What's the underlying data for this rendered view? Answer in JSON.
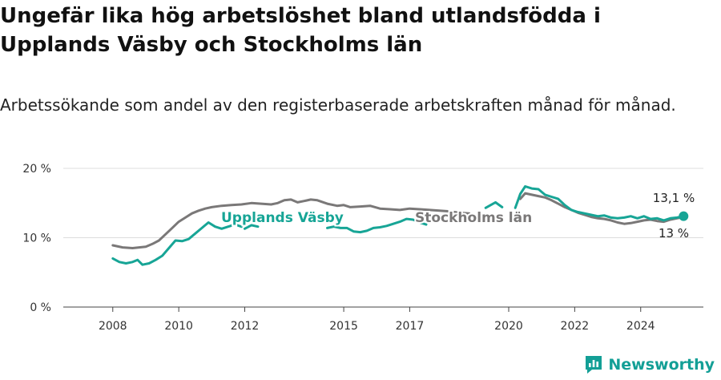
{
  "title": "Ungefär lika hög arbetslöshet bland utlandsfödda i Upplands Väsby och Stockholms län",
  "subtitle": "Arbetssökande som andel av den registerbaserade arbetskraften månad för månad.",
  "brand": "Newsworthy",
  "colors": {
    "vasby": "#17a596",
    "lan": "#7a7878",
    "grid": "#dddddd",
    "axis": "#444444",
    "brand": "#139f96"
  },
  "chart_data": {
    "type": "line",
    "x_unit": "year (decimal, monthly data)",
    "xlim": [
      2006.5,
      2025.9
    ],
    "ylim": [
      0,
      20
    ],
    "y_ticks": [
      0,
      10,
      20
    ],
    "y_tick_labels": [
      "0 %",
      "10 %",
      "20 %"
    ],
    "x_ticks": [
      2008,
      2010,
      2012,
      2015,
      2017,
      2020,
      2022,
      2024
    ],
    "x_tick_labels": [
      "2008",
      "2010",
      "2012",
      "2015",
      "2017",
      "2020",
      "2022",
      "2024"
    ],
    "grid": "horizontal",
    "series": [
      {
        "name": "Upplands Väsby",
        "color": "#17a596",
        "end_label": "13,1 %",
        "points": [
          [
            2008.0,
            7.0
          ],
          [
            2008.2,
            6.5
          ],
          [
            2008.4,
            6.3
          ],
          [
            2008.6,
            6.5
          ],
          [
            2008.75,
            6.8
          ],
          [
            2008.9,
            6.1
          ],
          [
            2009.1,
            6.3
          ],
          [
            2009.3,
            6.8
          ],
          [
            2009.5,
            7.4
          ],
          [
            2009.7,
            8.5
          ],
          [
            2009.9,
            9.6
          ],
          [
            2010.1,
            9.5
          ],
          [
            2010.3,
            9.8
          ],
          [
            2010.5,
            10.6
          ],
          [
            2010.7,
            11.4
          ],
          [
            2010.9,
            12.2
          ],
          [
            2011.1,
            11.6
          ],
          [
            2011.3,
            11.3
          ],
          [
            2011.5,
            11.6
          ],
          [
            2011.7,
            11.9
          ],
          [
            2011.9,
            11.6
          ],
          null,
          [
            2012.0,
            11.3
          ],
          [
            2012.2,
            11.8
          ],
          [
            2012.4,
            11.6
          ],
          null,
          [
            2014.5,
            11.4
          ],
          [
            2014.7,
            11.6
          ],
          [
            2014.9,
            11.4
          ],
          [
            2015.1,
            11.4
          ],
          [
            2015.3,
            10.9
          ],
          [
            2015.5,
            10.8
          ],
          [
            2015.7,
            11.0
          ],
          [
            2015.9,
            11.4
          ],
          [
            2016.1,
            11.5
          ],
          [
            2016.3,
            11.7
          ],
          [
            2016.5,
            12.0
          ],
          [
            2016.7,
            12.3
          ],
          [
            2016.9,
            12.7
          ],
          [
            2017.1,
            12.6
          ],
          [
            2017.3,
            12.2
          ],
          [
            2017.5,
            11.9
          ],
          null,
          [
            2019.3,
            14.3
          ],
          [
            2019.6,
            15.1
          ],
          [
            2019.8,
            14.4
          ],
          null,
          [
            2020.2,
            14.3
          ],
          [
            2020.35,
            16.3
          ],
          [
            2020.5,
            17.4
          ],
          [
            2020.7,
            17.1
          ],
          [
            2020.9,
            17.0
          ],
          [
            2021.1,
            16.2
          ],
          [
            2021.3,
            15.9
          ],
          [
            2021.5,
            15.6
          ],
          [
            2021.7,
            14.7
          ],
          [
            2021.9,
            14.0
          ],
          [
            2022.1,
            13.7
          ],
          [
            2022.3,
            13.5
          ],
          [
            2022.5,
            13.3
          ],
          [
            2022.7,
            13.1
          ],
          [
            2022.9,
            13.2
          ],
          [
            2023.1,
            12.9
          ],
          [
            2023.3,
            12.8
          ],
          [
            2023.5,
            12.9
          ],
          [
            2023.7,
            13.1
          ],
          [
            2023.9,
            12.8
          ],
          [
            2024.1,
            13.1
          ],
          [
            2024.3,
            12.7
          ],
          [
            2024.5,
            12.8
          ],
          [
            2024.7,
            12.5
          ],
          [
            2024.9,
            12.8
          ],
          [
            2025.1,
            12.9
          ],
          [
            2025.3,
            13.1
          ]
        ]
      },
      {
        "name": "Stockholms län",
        "color": "#7a7878",
        "end_label": "13 %",
        "points": [
          [
            2008.0,
            8.9
          ],
          [
            2008.3,
            8.6
          ],
          [
            2008.6,
            8.5
          ],
          [
            2008.8,
            8.6
          ],
          [
            2009.0,
            8.7
          ],
          [
            2009.2,
            9.1
          ],
          [
            2009.4,
            9.6
          ],
          [
            2009.6,
            10.5
          ],
          [
            2009.8,
            11.4
          ],
          [
            2010.0,
            12.3
          ],
          [
            2010.2,
            12.9
          ],
          [
            2010.4,
            13.5
          ],
          [
            2010.6,
            13.9
          ],
          [
            2010.8,
            14.2
          ],
          [
            2011.0,
            14.4
          ],
          [
            2011.3,
            14.6
          ],
          [
            2011.6,
            14.7
          ],
          [
            2011.9,
            14.8
          ],
          [
            2012.2,
            15.0
          ],
          [
            2012.5,
            14.9
          ],
          [
            2012.8,
            14.8
          ],
          [
            2013.0,
            15.0
          ],
          [
            2013.2,
            15.4
          ],
          [
            2013.4,
            15.5
          ],
          [
            2013.6,
            15.1
          ],
          [
            2013.8,
            15.3
          ],
          [
            2014.0,
            15.5
          ],
          [
            2014.2,
            15.4
          ],
          [
            2014.5,
            14.9
          ],
          [
            2014.8,
            14.6
          ],
          [
            2015.0,
            14.7
          ],
          [
            2015.2,
            14.4
          ],
          [
            2015.5,
            14.5
          ],
          [
            2015.8,
            14.6
          ],
          [
            2016.1,
            14.2
          ],
          [
            2016.4,
            14.1
          ],
          [
            2016.7,
            14.0
          ],
          [
            2017.0,
            14.2
          ],
          [
            2017.3,
            14.1
          ],
          [
            2017.6,
            14.0
          ],
          [
            2017.9,
            13.9
          ],
          [
            2018.2,
            13.8
          ],
          [
            2018.5,
            13.6
          ],
          [
            2018.8,
            13.5
          ],
          null,
          [
            2020.35,
            15.6
          ],
          [
            2020.5,
            16.4
          ],
          [
            2020.7,
            16.2
          ],
          [
            2020.9,
            16.0
          ],
          [
            2021.1,
            15.8
          ],
          [
            2021.3,
            15.4
          ],
          [
            2021.5,
            14.9
          ],
          [
            2021.7,
            14.4
          ],
          [
            2021.9,
            14.0
          ],
          [
            2022.1,
            13.6
          ],
          [
            2022.3,
            13.3
          ],
          [
            2022.5,
            13.0
          ],
          [
            2022.7,
            12.8
          ],
          [
            2022.9,
            12.7
          ],
          [
            2023.1,
            12.5
          ],
          [
            2023.3,
            12.2
          ],
          [
            2023.5,
            12.0
          ],
          [
            2023.7,
            12.1
          ],
          [
            2023.9,
            12.3
          ],
          [
            2024.1,
            12.5
          ],
          [
            2024.3,
            12.6
          ],
          [
            2024.5,
            12.4
          ],
          [
            2024.7,
            12.3
          ],
          [
            2024.9,
            12.6
          ],
          [
            2025.1,
            12.8
          ],
          [
            2025.3,
            13.0
          ]
        ]
      }
    ]
  }
}
